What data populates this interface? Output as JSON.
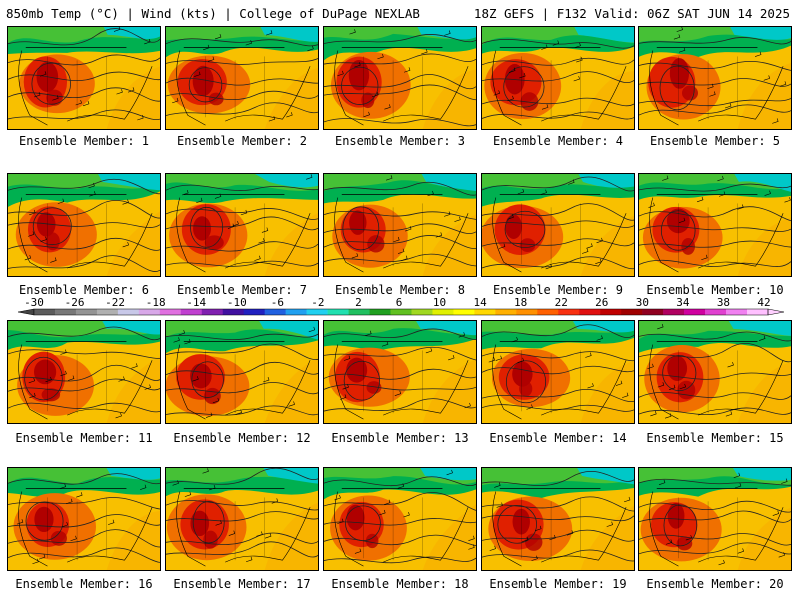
{
  "header": {
    "left": "850mb Temp (°C) | Wind (kts) | College of DuPage NEXLAB",
    "right": "18Z GEFS | F132 Valid: 06Z SAT JUN 14 2025"
  },
  "members": [
    "Ensemble Member: 1",
    "Ensemble Member: 2",
    "Ensemble Member: 3",
    "Ensemble Member: 4",
    "Ensemble Member: 5",
    "Ensemble Member: 6",
    "Ensemble Member: 7",
    "Ensemble Member: 8",
    "Ensemble Member: 9",
    "Ensemble Member: 10",
    "Ensemble Member: 11",
    "Ensemble Member: 12",
    "Ensemble Member: 13",
    "Ensemble Member: 14",
    "Ensemble Member: 15",
    "Ensemble Member: 16",
    "Ensemble Member: 17",
    "Ensemble Member: 18",
    "Ensemble Member: 19",
    "Ensemble Member: 20"
  ],
  "colorbar": {
    "labels": [
      "-30",
      "-26",
      "-22",
      "-18",
      "-14",
      "-10",
      "-6",
      "-2",
      "2",
      "6",
      "10",
      "14",
      "18",
      "22",
      "26",
      "30",
      "34",
      "38",
      "42"
    ],
    "colors": [
      "#5c5c5c",
      "#787878",
      "#949494",
      "#b0b0b0",
      "#c8c8e8",
      "#d8a8e8",
      "#e070e0",
      "#c040d0",
      "#8020b0",
      "#4010a0",
      "#2020c0",
      "#2060e0",
      "#20a0f0",
      "#20d0f0",
      "#20e0b0",
      "#20c060",
      "#20a020",
      "#60c020",
      "#a0d820",
      "#e0f000",
      "#ffff00",
      "#ffd800",
      "#ffb000",
      "#ff9000",
      "#ff6000",
      "#f83010",
      "#e01010",
      "#c00000",
      "#a00000",
      "#900020",
      "#b00060",
      "#d000a0",
      "#e040d0",
      "#f080f0",
      "#ffc0ff"
    ],
    "palette": {
      "cold": "#00c8c8",
      "cool": "#00b050",
      "mild": "#80d020",
      "warm": "#f8c000",
      "hot": "#f07000",
      "veryhot": "#e02000",
      "extreme": "#b00000"
    }
  }
}
